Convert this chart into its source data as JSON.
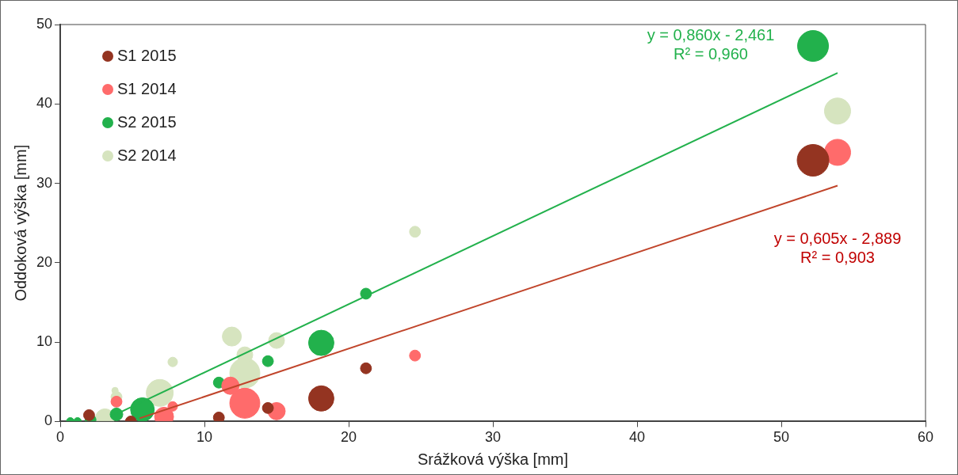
{
  "chart_data": {
    "type": "bubble",
    "xlabel": "Srážková výška [mm]",
    "ylabel": "Oddoková výška [mm]",
    "xlim": [
      0,
      60
    ],
    "xticks": [
      0,
      10,
      20,
      30,
      40,
      50,
      60
    ],
    "ylim": [
      0,
      50
    ],
    "yticks": [
      0,
      10,
      20,
      30,
      40,
      50
    ],
    "grid": false,
    "legend": "top left",
    "series": [
      {
        "name": "S1 2015",
        "color": "#943421",
        "x": [
          52.2,
          18.1,
          21.2,
          14.4,
          11.0,
          2.0,
          4.9
        ],
        "values": [
          32.9,
          2.9,
          6.7,
          1.7,
          0.5,
          0.8,
          0
        ],
        "sizes": [
          1,
          0.64,
          0.12,
          0.12,
          0.12,
          0.12,
          0.12
        ]
      },
      {
        "name": "S1 2014",
        "color": "#ff6b6b",
        "x": [
          53.9,
          24.6,
          12.8,
          15.0,
          11.8,
          7.8,
          3.9,
          7.2
        ],
        "values": [
          33.9,
          8.3,
          2.3,
          1.3,
          4.5,
          1.9,
          2.5,
          0.6
        ],
        "sizes": [
          0.68,
          0.12,
          0.9,
          0.3,
          0.3,
          0.09,
          0.12,
          0.36
        ]
      },
      {
        "name": "S2 2015",
        "color": "#22b14c",
        "x": [
          52.2,
          18.1,
          21.2,
          14.4,
          11.0,
          5.7,
          3.9,
          2.1,
          0.7,
          1.2
        ],
        "values": [
          47.3,
          9.9,
          16.1,
          7.6,
          4.9,
          1.5,
          0.9,
          0.2,
          0,
          0
        ],
        "sizes": [
          0.95,
          0.64,
          0.12,
          0.12,
          0.12,
          0.56,
          0.16,
          0.12,
          0.06,
          0.06
        ]
      },
      {
        "name": "S2 2014",
        "color": "#d6e4bf",
        "x": [
          53.9,
          24.6,
          11.9,
          15.0,
          12.8,
          12.8,
          7.8,
          6.9,
          3.9,
          3.8,
          3.1
        ],
        "values": [
          39.1,
          23.9,
          10.7,
          10.2,
          6.1,
          8.4,
          7.5,
          3.6,
          3.1,
          3.9,
          0.4
        ],
        "sizes": [
          0.68,
          0.12,
          0.36,
          0.25,
          0.9,
          0.25,
          0.09,
          0.72,
          0.12,
          0.04,
          0.36
        ]
      },
      {
        "type": "line",
        "color": "#22b14c",
        "x": [
          3.5,
          53.9
        ],
        "values": [
          0.6,
          43.9
        ]
      },
      {
        "type": "line",
        "color": "#c0442a",
        "x": [
          5.5,
          53.9
        ],
        "values": [
          0.4,
          29.7
        ]
      }
    ],
    "annotations": [
      "y = 0,860x - 2,461\nR² = 0,960",
      "y = 0,605x - 2,889\nR² = 0,903"
    ]
  }
}
